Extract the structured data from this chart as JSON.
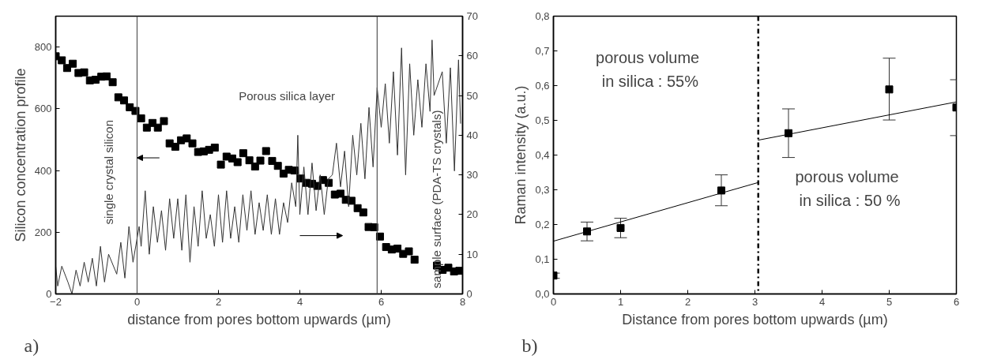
{
  "chart_data": [
    {
      "type": "scatter",
      "xlabel": "distance from pores bottom upwards (µm)",
      "ylabel": "Silicon concentration profile",
      "xlim": [
        -2,
        8
      ],
      "xticks": [
        -2,
        0,
        2,
        4,
        6,
        8
      ],
      "ylim": [
        0,
        900
      ],
      "yticks": [
        0,
        200,
        400,
        600,
        800
      ],
      "y2lim": [
        0,
        70
      ],
      "y2ticks": [
        0,
        10,
        20,
        30,
        40,
        50,
        60,
        70
      ],
      "grid": false,
      "annotations": [
        "a)",
        "single crystal silicon",
        "Porous silica layer",
        "sample surface (PDA-TS crystals)"
      ],
      "ref_lines": [
        {
          "axis": "x",
          "value": 0,
          "color": "#555555",
          "line_style": "solid"
        },
        {
          "axis": "x",
          "value": 5.9,
          "color": "#555555",
          "line_style": "solid"
        }
      ],
      "series": [
        {
          "type": "scatter",
          "marker": "square",
          "color": "#000000",
          "x": [
            -2,
            -1.85,
            -1.72,
            -1.58,
            -1.44,
            -1.3,
            -1.16,
            -1.02,
            -0.88,
            -0.75,
            -0.6,
            -0.46,
            -0.32,
            -0.18,
            -0.04,
            0.1,
            0.24,
            0.38,
            0.51,
            0.66,
            0.8,
            0.94,
            1.08,
            1.22,
            1.36,
            1.5,
            1.64,
            1.77,
            1.91,
            2.06,
            2.2,
            2.34,
            2.47,
            2.61,
            2.76,
            2.9,
            3.03,
            3.17,
            3.32,
            3.46,
            3.6,
            3.73,
            3.87,
            4.02,
            4.16,
            4.3,
            4.43,
            4.57,
            4.71,
            4.86,
            5.0,
            5.13,
            5.27,
            5.42,
            5.56,
            5.69,
            5.83,
            5.97,
            6.12,
            6.26,
            6.4,
            6.54,
            6.68,
            6.82,
            7.37,
            7.51,
            7.65,
            7.79,
            7.92
          ],
          "values": [
            770,
            757,
            732,
            746,
            716,
            718,
            692,
            694,
            704,
            705,
            686,
            637,
            627,
            605,
            593,
            569,
            539,
            554,
            539,
            560,
            488,
            477,
            498,
            504,
            488,
            460,
            462,
            467,
            474,
            419,
            445,
            439,
            427,
            456,
            433,
            413,
            432,
            463,
            431,
            415,
            390,
            402,
            400,
            374,
            360,
            357,
            350,
            369,
            360,
            322,
            325,
            305,
            302,
            278,
            264,
            217,
            216,
            186,
            152,
            144,
            147,
            130,
            138,
            111,
            92,
            78,
            85,
            73,
            75
          ]
        },
        {
          "type": "line",
          "axis": "y2",
          "marker": "none",
          "color": "#333333",
          "x": [
            -2.0,
            -1.95,
            -1.85,
            -1.7,
            -1.6,
            -1.5,
            -1.4,
            -1.3,
            -1.2,
            -1.1,
            -1.0,
            -0.9,
            -0.8,
            -0.7,
            -0.5,
            -0.4,
            -0.3,
            -0.2,
            -0.1,
            0.05,
            0.1,
            0.2,
            0.3,
            0.4,
            0.5,
            0.6,
            0.7,
            0.8,
            0.9,
            1.0,
            1.1,
            1.2,
            1.3,
            1.4,
            1.5,
            1.6,
            1.7,
            1.8,
            1.9,
            2.0,
            2.1,
            2.2,
            2.3,
            2.4,
            2.5,
            2.6,
            2.7,
            2.8,
            2.9,
            3.0,
            3.1,
            3.2,
            3.3,
            3.4,
            3.5,
            3.6,
            3.7,
            3.8,
            3.9,
            3.95,
            4.0,
            4.1,
            4.2,
            4.3,
            4.4,
            4.5,
            4.6,
            4.7,
            4.8,
            4.9,
            5.0,
            5.1,
            5.2,
            5.3,
            5.4,
            5.5,
            5.6,
            5.7,
            5.8,
            5.9,
            6.0,
            6.1,
            6.2,
            6.3,
            6.4,
            6.5,
            6.6,
            6.7,
            6.8,
            6.9,
            7.0,
            7.1,
            7.2,
            7.25,
            7.3,
            7.5,
            7.6,
            7.7,
            7.8,
            7.9,
            7.95
          ],
          "values": [
            7,
            2,
            7,
            3,
            0,
            6,
            2,
            8,
            3,
            9,
            2,
            12,
            3,
            10,
            5,
            13,
            4,
            17,
            8,
            17,
            12,
            26,
            10,
            22,
            13,
            21,
            11,
            24,
            14,
            24,
            11,
            25,
            8,
            22,
            12,
            26,
            14,
            20,
            12,
            25,
            13,
            26,
            14,
            22,
            13,
            25,
            16,
            26,
            15,
            23,
            16,
            25,
            15,
            24,
            15,
            23,
            18,
            28,
            22,
            40,
            20,
            32,
            20,
            33,
            21,
            30,
            20,
            29,
            30,
            38,
            27,
            36,
            22,
            40,
            30,
            43,
            29,
            47,
            32,
            52,
            42,
            53,
            38,
            56,
            35,
            62,
            30,
            58,
            40,
            54,
            42,
            58,
            46,
            64,
            50,
            56,
            38,
            57,
            31,
            59,
            43
          ]
        }
      ]
    },
    {
      "type": "scatter",
      "xlabel": "Distance from pores bottom upwards (µm)",
      "ylabel": "Raman intensity (a.u.)",
      "xlim": [
        0,
        6
      ],
      "xticks": [
        0,
        1,
        2,
        3,
        4,
        5,
        6
      ],
      "ylim": [
        0,
        0.8
      ],
      "yticks": [
        {
          "value": 0,
          "label": "0,0"
        },
        {
          "value": 0.1,
          "label": "0,1"
        },
        {
          "value": 0.2,
          "label": "0,2"
        },
        {
          "value": 0.3,
          "label": "0,3"
        },
        {
          "value": 0.4,
          "label": "0,4"
        },
        {
          "value": 0.5,
          "label": "0,5"
        },
        {
          "value": 0.6,
          "label": "0,6"
        },
        {
          "value": 0.7,
          "label": "0,7"
        },
        {
          "value": 0.8,
          "label": "0,8"
        }
      ],
      "grid": false,
      "annotations": [
        "b)",
        "porous volume",
        "in silica : 55%",
        "porous volume",
        "in silica : 50 %"
      ],
      "ref_lines": [
        {
          "axis": "x",
          "value": 3.05,
          "color": "#000000",
          "line_style": "dashdot"
        }
      ],
      "series": [
        {
          "type": "scatter",
          "marker": "square",
          "color": "#000000",
          "x": [
            0,
            0.5,
            1,
            2.5,
            3.5,
            5,
            6
          ],
          "values": [
            0.053,
            0.18,
            0.19,
            0.298,
            0.463,
            0.589,
            0.537
          ],
          "errors": [
            [
              0.045,
              0.06
            ],
            [
              0.153,
              0.207
            ],
            [
              0.162,
              0.218
            ],
            [
              0.254,
              0.343
            ],
            [
              0.393,
              0.533
            ],
            [
              0.501,
              0.679
            ],
            [
              0.456,
              0.617
            ]
          ]
        },
        {
          "type": "line",
          "marker": "none",
          "color": "#000000",
          "x": [
            0,
            3.05
          ],
          "values": [
            0.152,
            0.321
          ]
        },
        {
          "type": "line",
          "marker": "none",
          "color": "#000000",
          "x": [
            3.05,
            6
          ],
          "values": [
            0.443,
            0.553
          ]
        }
      ]
    }
  ]
}
